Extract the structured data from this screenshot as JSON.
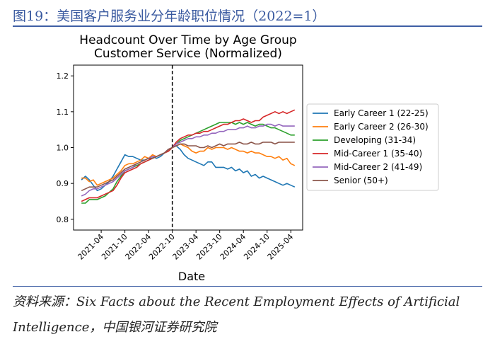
{
  "figure": {
    "title": "图19：美国客户服务业分年龄职位情况（2022=1）",
    "source_line1": "资料来源：Six Facts about the Recent Employment Effects of Artificial",
    "source_line2": "Intelligence，中国银河证券研究院",
    "accent_color": "#3f5fa5"
  },
  "chart_data": {
    "type": "line",
    "title": "Headcount Over Time by Age Group",
    "subtitle": "Customer Service (Normalized)",
    "xlabel": "Date",
    "ylabel": "",
    "ylim": [
      0.77,
      1.23
    ],
    "yticks": [
      0.8,
      0.9,
      1.0,
      1.1,
      1.2
    ],
    "ytick_labels": [
      "0.8",
      "0.9",
      "1.0",
      "1.1",
      "1.2"
    ],
    "x_start": "2020-11",
    "xlim_index": [
      -2,
      56
    ],
    "xticks": [
      5,
      11,
      17,
      23,
      29,
      35,
      41,
      47,
      53
    ],
    "xtick_labels": [
      "2021-04",
      "2021-10",
      "2022-04",
      "2022-10",
      "2023-04",
      "2023-10",
      "2024-04",
      "2024-10",
      "2025-04"
    ],
    "vline": {
      "x": 23,
      "label": "2022-10",
      "style": "dashed"
    },
    "legend_position": "center-right outside",
    "series": [
      {
        "name": "Early Career 1 (22-25)",
        "color": "#1f77b4",
        "values": [
          0.91,
          0.92,
          0.91,
          0.895,
          0.88,
          0.885,
          0.895,
          0.905,
          0.92,
          0.94,
          0.96,
          0.98,
          0.975,
          0.975,
          0.97,
          0.965,
          0.965,
          0.97,
          0.975,
          0.97,
          0.975,
          0.985,
          0.995,
          1.0,
          1.005,
          0.995,
          0.98,
          0.97,
          0.965,
          0.96,
          0.955,
          0.95,
          0.96,
          0.96,
          0.945,
          0.945,
          0.945,
          0.94,
          0.945,
          0.935,
          0.94,
          0.93,
          0.935,
          0.92,
          0.925,
          0.915,
          0.92,
          0.915,
          0.91,
          0.905,
          0.9,
          0.895,
          0.9,
          0.895,
          0.89
        ]
      },
      {
        "name": "Early Career 2 (26-30)",
        "color": "#ff7f0e",
        "values": [
          0.915,
          0.915,
          0.905,
          0.91,
          0.895,
          0.9,
          0.905,
          0.91,
          0.915,
          0.925,
          0.935,
          0.95,
          0.955,
          0.955,
          0.96,
          0.965,
          0.975,
          0.97,
          0.98,
          0.975,
          0.98,
          0.985,
          0.995,
          1.0,
          1.005,
          1.01,
          1.005,
          1.0,
          0.99,
          0.985,
          0.99,
          0.99,
          1.0,
          0.995,
          1.0,
          1.0,
          1.0,
          0.995,
          1.0,
          0.995,
          0.99,
          0.99,
          0.985,
          0.99,
          0.985,
          0.985,
          0.98,
          0.975,
          0.975,
          0.97,
          0.975,
          0.965,
          0.97,
          0.955,
          0.95
        ]
      },
      {
        "name": "Developing (31-34)",
        "color": "#2ca02c",
        "values": [
          0.845,
          0.845,
          0.855,
          0.855,
          0.855,
          0.86,
          0.865,
          0.875,
          0.885,
          0.905,
          0.92,
          0.935,
          0.94,
          0.945,
          0.95,
          0.955,
          0.96,
          0.965,
          0.97,
          0.975,
          0.98,
          0.985,
          0.99,
          1.0,
          1.01,
          1.02,
          1.025,
          1.03,
          1.035,
          1.04,
          1.045,
          1.05,
          1.055,
          1.06,
          1.065,
          1.07,
          1.07,
          1.07,
          1.07,
          1.065,
          1.07,
          1.065,
          1.07,
          1.065,
          1.06,
          1.065,
          1.065,
          1.06,
          1.055,
          1.055,
          1.05,
          1.045,
          1.04,
          1.035,
          1.035
        ]
      },
      {
        "name": "Mid-Career 1 (35-40)",
        "color": "#d62728",
        "values": [
          0.85,
          0.855,
          0.86,
          0.86,
          0.86,
          0.865,
          0.87,
          0.875,
          0.88,
          0.895,
          0.915,
          0.93,
          0.935,
          0.94,
          0.945,
          0.955,
          0.96,
          0.965,
          0.97,
          0.975,
          0.98,
          0.985,
          0.99,
          1.0,
          1.015,
          1.025,
          1.03,
          1.035,
          1.035,
          1.04,
          1.04,
          1.045,
          1.045,
          1.05,
          1.055,
          1.06,
          1.065,
          1.065,
          1.07,
          1.075,
          1.075,
          1.08,
          1.075,
          1.07,
          1.075,
          1.075,
          1.085,
          1.09,
          1.095,
          1.1,
          1.095,
          1.1,
          1.095,
          1.1,
          1.105
        ]
      },
      {
        "name": "Mid-Career 2 (41-49)",
        "color": "#9467bd",
        "values": [
          0.865,
          0.87,
          0.88,
          0.885,
          0.885,
          0.89,
          0.895,
          0.9,
          0.905,
          0.915,
          0.925,
          0.935,
          0.94,
          0.945,
          0.955,
          0.96,
          0.965,
          0.97,
          0.975,
          0.975,
          0.98,
          0.985,
          0.995,
          1.0,
          1.01,
          1.015,
          1.02,
          1.025,
          1.025,
          1.03,
          1.03,
          1.035,
          1.035,
          1.04,
          1.04,
          1.045,
          1.045,
          1.05,
          1.05,
          1.05,
          1.055,
          1.055,
          1.06,
          1.055,
          1.055,
          1.06,
          1.06,
          1.065,
          1.065,
          1.06,
          1.065,
          1.06,
          1.06,
          1.06,
          1.06
        ]
      },
      {
        "name": "Senior (50+)",
        "color": "#8c564b",
        "values": [
          0.88,
          0.885,
          0.89,
          0.89,
          0.89,
          0.895,
          0.9,
          0.905,
          0.91,
          0.92,
          0.93,
          0.94,
          0.945,
          0.95,
          0.955,
          0.96,
          0.965,
          0.97,
          0.97,
          0.975,
          0.98,
          0.985,
          0.995,
          1.0,
          1.005,
          1.01,
          1.01,
          1.005,
          1.005,
          1.005,
          1.0,
          1.0,
          1.005,
          1.0,
          1.005,
          1.01,
          1.005,
          1.01,
          1.01,
          1.01,
          1.015,
          1.01,
          1.01,
          1.015,
          1.01,
          1.01,
          1.015,
          1.015,
          1.015,
          1.01,
          1.015,
          1.015,
          1.015,
          1.015,
          1.015
        ]
      }
    ]
  }
}
